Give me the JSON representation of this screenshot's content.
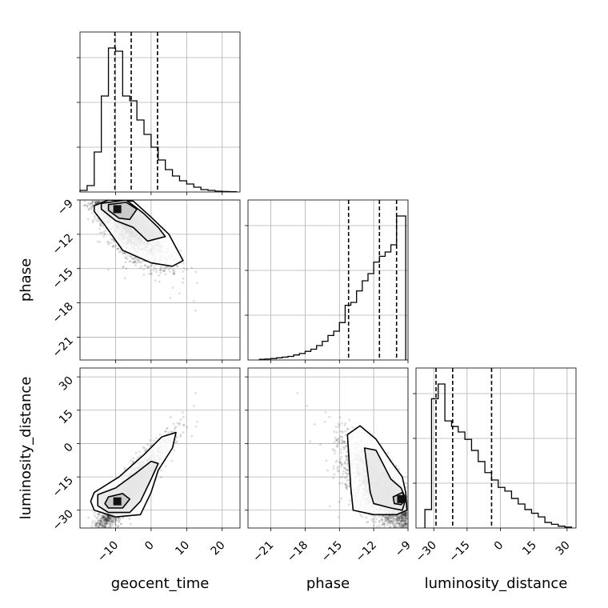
{
  "chart_data": {
    "type": "corner",
    "parameters": [
      "geocent_time",
      "phase",
      "luminosity_distance"
    ],
    "axis_labels": {
      "geocent_time": "geocent_time",
      "phase": "phase",
      "luminosity_distance": "luminosity_distance"
    },
    "ranges": {
      "geocent_time": [
        -20,
        25
      ],
      "phase": [
        -23,
        -9
      ],
      "luminosity_distance": [
        -38,
        34
      ]
    },
    "ticks": {
      "geocent_time": [
        -10,
        0,
        10,
        20
      ],
      "phase": [
        -21,
        -18,
        -15,
        -12,
        -9
      ],
      "luminosity_distance": [
        -30,
        -15,
        0,
        15,
        30
      ]
    },
    "tick_labels": {
      "geocent_time": [
        "−10",
        "0",
        "10",
        "20"
      ],
      "phase": [
        "−21",
        "−18",
        "−15",
        "−12",
        "−9"
      ],
      "luminosity_distance": [
        "−30",
        "−15",
        "0",
        "15",
        "30"
      ]
    },
    "grid": true,
    "histograms": {
      "geocent_time": {
        "bin_edges": [
          -20,
          -18,
          -16,
          -14,
          -12,
          -10,
          -8,
          -6,
          -4,
          -2,
          0,
          2,
          4,
          6,
          8,
          10,
          12,
          14,
          16,
          18,
          20,
          22,
          24
        ],
        "counts": [
          0.01,
          0.04,
          0.25,
          0.6,
          0.9,
          0.88,
          0.6,
          0.57,
          0.45,
          0.36,
          0.28,
          0.2,
          0.14,
          0.1,
          0.07,
          0.05,
          0.03,
          0.015,
          0.01,
          0.005,
          0.003,
          0.002
        ],
        "quantiles": [
          -10.2,
          -5.6,
          1.8
        ]
      },
      "phase": {
        "bin_edges": [
          -22,
          -21.5,
          -21,
          -20.5,
          -20,
          -19.5,
          -19,
          -18.5,
          -18,
          -17.5,
          -17,
          -16.5,
          -16,
          -15.5,
          -15,
          -14.5,
          -14,
          -13.5,
          -13,
          -12.5,
          -12,
          -11.5,
          -11,
          -10.5,
          -10,
          -9.5,
          -9.2
        ],
        "counts": [
          0.005,
          0.007,
          0.01,
          0.015,
          0.02,
          0.025,
          0.035,
          0.045,
          0.06,
          0.075,
          0.1,
          0.13,
          0.17,
          0.2,
          0.26,
          0.38,
          0.4,
          0.48,
          0.55,
          0.6,
          0.68,
          0.72,
          0.75,
          0.8,
          1.0,
          1.0
        ],
        "quantiles": [
          -14.2,
          -11.5,
          -10.0
        ]
      },
      "luminosity_distance": {
        "bin_edges": [
          -34,
          -31,
          -28,
          -25,
          -22,
          -19,
          -16,
          -13,
          -10,
          -7,
          -4,
          -1,
          2,
          5,
          8,
          11,
          14,
          17,
          20,
          23,
          26,
          29,
          32
        ],
        "counts": [
          0.1,
          0.7,
          0.78,
          0.58,
          0.55,
          0.52,
          0.48,
          0.42,
          0.36,
          0.3,
          0.26,
          0.22,
          0.2,
          0.16,
          0.13,
          0.1,
          0.08,
          0.06,
          0.03,
          0.02,
          0.01,
          0.005
        ],
        "quantiles": [
          -29.0,
          -21.5,
          -4.0
        ]
      }
    },
    "pairs": [
      {
        "x": "geocent_time",
        "y": "phase",
        "peak": [
          -9.5,
          -9.8
        ],
        "contours": [
          [
            [
              -12,
              -9.4
            ],
            [
              -7,
              -9.2
            ],
            [
              -4,
              -9.8
            ],
            [
              -6,
              -10.7
            ],
            [
              -9,
              -10.6
            ],
            [
              -12,
              -9.9
            ]
          ],
          [
            [
              -14,
              -9.3
            ],
            [
              -7,
              -9.0
            ],
            [
              -2,
              -10.2
            ],
            [
              2,
              -11.4
            ],
            [
              4,
              -12.2
            ],
            [
              -1,
              -12.6
            ],
            [
              -5,
              -11.4
            ],
            [
              -10,
              -10.8
            ],
            [
              -14,
              -9.8
            ]
          ],
          [
            [
              -16,
              -9.5
            ],
            [
              -12,
              -9.0
            ],
            [
              -5,
              -9.1
            ],
            [
              0,
              -10.5
            ],
            [
              5,
              -12.0
            ],
            [
              9,
              -14.3
            ],
            [
              6,
              -14.8
            ],
            [
              0,
              -14.5
            ],
            [
              -8,
              -13.4
            ],
            [
              -13,
              -11.2
            ],
            [
              -16,
              -10.0
            ]
          ]
        ]
      },
      {
        "x": "geocent_time",
        "y": "luminosity_distance",
        "peak": [
          -9.5,
          -26.0
        ],
        "contours": [
          [
            [
              -12,
              -24
            ],
            [
              -8,
              -22.5
            ],
            [
              -6,
              -25
            ],
            [
              -8,
              -29
            ],
            [
              -12,
              -29
            ],
            [
              -13,
              -27
            ]
          ],
          [
            [
              -15,
              -23
            ],
            [
              -10,
              -20
            ],
            [
              -4,
              -13
            ],
            [
              0,
              -8
            ],
            [
              2,
              -9
            ],
            [
              0,
              -16
            ],
            [
              -3,
              -26
            ],
            [
              -6,
              -31
            ],
            [
              -12,
              -31
            ],
            [
              -15,
              -28
            ]
          ],
          [
            [
              -16,
              -22
            ],
            [
              -9,
              -15
            ],
            [
              -2,
              -5
            ],
            [
              3,
              3
            ],
            [
              7,
              5
            ],
            [
              6,
              -2
            ],
            [
              2,
              -12
            ],
            [
              0,
              -22
            ],
            [
              -3,
              -32
            ],
            [
              -10,
              -33
            ],
            [
              -16,
              -30
            ],
            [
              -17,
              -26
            ]
          ]
        ]
      },
      {
        "x": "phase",
        "y": "luminosity_distance",
        "peak": [
          -9.6,
          -25.0
        ],
        "contours": [
          [
            [
              -10.3,
              -24
            ],
            [
              -9.5,
              -22
            ],
            [
              -9.2,
              -25
            ],
            [
              -9.6,
              -27.5
            ],
            [
              -10.2,
              -27
            ]
          ],
          [
            [
              -12.3,
              -22
            ],
            [
              -12.8,
              -2
            ],
            [
              -11.8,
              -3
            ],
            [
              -10.5,
              -16
            ],
            [
              -9.6,
              -20
            ],
            [
              -9.2,
              -25
            ],
            [
              -9.5,
              -30
            ],
            [
              -10.5,
              -29
            ],
            [
              -12,
              -27
            ]
          ],
          [
            [
              -13.8,
              -30
            ],
            [
              -14,
              -20
            ],
            [
              -14.3,
              4
            ],
            [
              -13.2,
              8
            ],
            [
              -11.8,
              2
            ],
            [
              -10.5,
              -8
            ],
            [
              -9.5,
              -15
            ],
            [
              -9.2,
              -22
            ],
            [
              -9.1,
              -30
            ],
            [
              -10,
              -32
            ],
            [
              -12,
              -32
            ]
          ]
        ]
      }
    ]
  }
}
